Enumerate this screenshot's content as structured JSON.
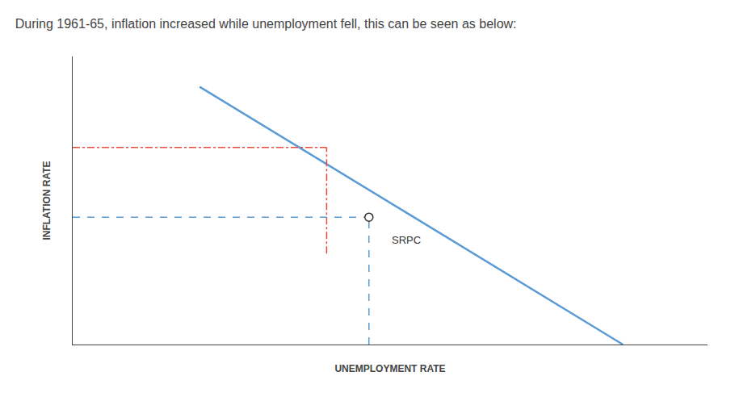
{
  "chart_data": {
    "type": "line",
    "title": "During 1961-65, inflation increased while unemployment fell, this can be seen as below:",
    "x_label": "UNEMPLOYMENT RATE",
    "y_label": "INFLATION RATE",
    "xlim": [
      2.0,
      9.5
    ],
    "ylim": [
      1.0,
      10.5
    ],
    "tick_labels": false,
    "grid": false,
    "series": [
      {
        "x": [
          3.5,
          8.5
        ],
        "values": [
          9.5,
          1.0
        ],
        "color": "#5b9bd5",
        "line_style": "solid"
      },
      {
        "x": [
          2.0,
          5.0
        ],
        "values": [
          7.5,
          7.5
        ],
        "color": "#e74c3c",
        "line_style": "dashdot"
      },
      {
        "x": [
          5.0,
          5.0
        ],
        "values": [
          4.0,
          7.5
        ],
        "color": "#e74c3c",
        "line_style": "dashdot"
      },
      {
        "x": [
          2.0,
          5.5
        ],
        "values": [
          5.2,
          5.2
        ],
        "color": "#5b9bd5",
        "line_style": "dash"
      },
      {
        "x": [
          5.5,
          5.5
        ],
        "values": [
          1.0,
          5.2
        ],
        "color": "#5b9bd5",
        "line_style": "dash"
      },
      {
        "type": "scatter",
        "x": [
          5.5
        ],
        "values": [
          5.2
        ],
        "color": "#333333",
        "marker": "open circle"
      }
    ],
    "annotations": [
      {
        "text": "SRPC",
        "x": 5.75,
        "y": 4.2
      }
    ]
  }
}
